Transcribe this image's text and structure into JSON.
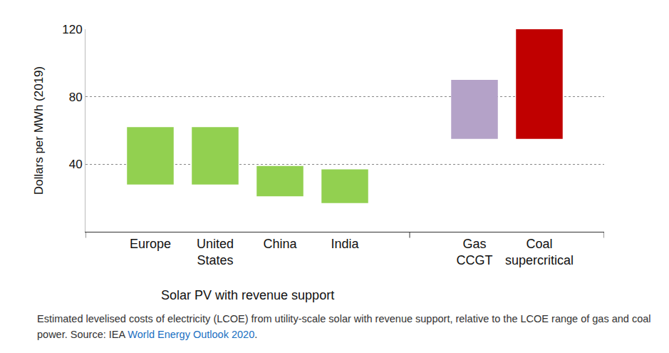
{
  "chart_data": {
    "type": "bar",
    "y_label": "Dollars per MWh (2019)",
    "categories": [
      "Europe",
      "United States",
      "China",
      "India",
      null,
      "Gas CCGT",
      "Coal supercritical"
    ],
    "values": [
      [
        28,
        62
      ],
      [
        28,
        62
      ],
      [
        21,
        39
      ],
      [
        17,
        37
      ],
      null,
      [
        55,
        90
      ],
      [
        55,
        120
      ]
    ],
    "colors": [
      "#92d050",
      "#92d050",
      "#92d050",
      "#92d050",
      null,
      "#b4a2c8",
      "#c00000"
    ],
    "groups": [
      {
        "label": "Solar PV with revenue support",
        "categories": [
          "Europe",
          "United States",
          "China",
          "India"
        ]
      }
    ],
    "ylim": [
      0,
      120
    ],
    "yticks": [
      40,
      80,
      120
    ],
    "grid": true
  },
  "caption": {
    "text": "Estimated levelised costs of electricity (LCOE) from utility-scale solar with revenue support, relative to the LCOE range of gas and coal power. Source: IEA ",
    "link": "World Energy Outlook 2020",
    "end": "."
  }
}
